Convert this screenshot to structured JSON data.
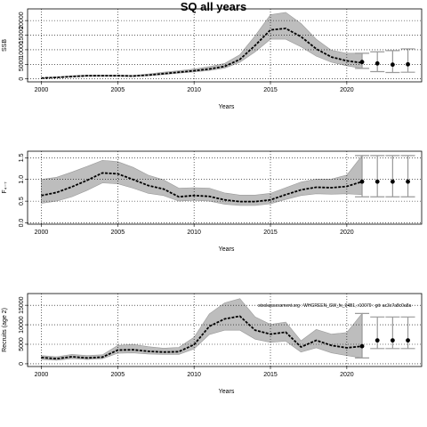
{
  "figure": {
    "title": "SQ all years"
  },
  "chart_data": [
    {
      "type": "line",
      "ylabel": "SSB",
      "xlabel": "Years",
      "xlim": [
        1999.1,
        2024.9
      ],
      "ylim": [
        -1000,
        24000
      ],
      "xticks": [
        2000,
        2005,
        2010,
        2015,
        2020
      ],
      "yticks": [
        0,
        5000,
        10000,
        15000,
        20000
      ],
      "grid": true,
      "estimate": {
        "x": [
          2000,
          2001,
          2002,
          2003,
          2004,
          2005,
          2006,
          2007,
          2008,
          2009,
          2010,
          2011,
          2012,
          2013,
          2014,
          2015,
          2016,
          2017,
          2018,
          2019,
          2020,
          2021
        ],
        "median": [
          300,
          500,
          800,
          1100,
          1100,
          1100,
          1000,
          1300,
          1800,
          2300,
          2800,
          3400,
          4300,
          6700,
          11500,
          16800,
          17300,
          14500,
          10300,
          7500,
          6200,
          5500
        ],
        "lower": [
          200,
          400,
          700,
          900,
          900,
          900,
          800,
          1100,
          1500,
          2000,
          2400,
          2900,
          3700,
          5700,
          9300,
          13600,
          13600,
          11000,
          7800,
          5700,
          4500,
          3600
        ],
        "upper": [
          400,
          700,
          1100,
          1300,
          1300,
          1300,
          1200,
          1700,
          2300,
          2800,
          3400,
          4200,
          5300,
          8300,
          14800,
          22000,
          22800,
          19000,
          13600,
          9800,
          8800,
          8800
        ]
      },
      "projection": {
        "x": [
          2021,
          2022,
          2023,
          2024
        ],
        "median": [
          5800,
          5300,
          4900,
          5000
        ],
        "lower": [
          3600,
          2500,
          2200,
          2300
        ],
        "upper": [
          8800,
          9300,
          9700,
          10300
        ]
      },
      "annotation": ""
    },
    {
      "type": "line",
      "ylabel": "F₄₋₇",
      "xlabel": "Years",
      "xlim": [
        1999.1,
        2024.9
      ],
      "ylim": [
        -0.03,
        1.65
      ],
      "xticks": [
        2000,
        2005,
        2010,
        2015,
        2020
      ],
      "yticks": [
        0.0,
        0.5,
        1.0,
        1.5
      ],
      "grid": true,
      "estimate": {
        "x": [
          2000,
          2001,
          2002,
          2003,
          2004,
          2005,
          2006,
          2007,
          2008,
          2009,
          2010,
          2011,
          2012,
          2013,
          2014,
          2015,
          2016,
          2017,
          2018,
          2019,
          2020,
          2021
        ],
        "median": [
          0.63,
          0.7,
          0.83,
          0.98,
          1.15,
          1.13,
          1.0,
          0.86,
          0.78,
          0.6,
          0.63,
          0.61,
          0.53,
          0.49,
          0.49,
          0.53,
          0.65,
          0.76,
          0.82,
          0.81,
          0.84,
          0.95
        ],
        "lower": [
          0.45,
          0.5,
          0.6,
          0.75,
          0.92,
          0.9,
          0.8,
          0.68,
          0.63,
          0.5,
          0.52,
          0.5,
          0.43,
          0.4,
          0.4,
          0.44,
          0.54,
          0.63,
          0.67,
          0.66,
          0.67,
          0.65
        ],
        "upper": [
          1.0,
          1.05,
          1.17,
          1.3,
          1.44,
          1.41,
          1.28,
          1.1,
          0.99,
          0.8,
          0.81,
          0.8,
          0.69,
          0.64,
          0.64,
          0.68,
          0.81,
          0.94,
          1.01,
          1.01,
          1.1,
          1.55
        ]
      },
      "projection": {
        "x": [
          2021,
          2022,
          2023,
          2024
        ],
        "median": [
          0.95,
          0.95,
          0.95,
          0.95
        ],
        "lower": [
          0.6,
          0.6,
          0.6,
          0.6
        ],
        "upper": [
          1.55,
          1.55,
          1.55,
          1.55
        ]
      },
      "annotation": ""
    },
    {
      "type": "line",
      "ylabel": "Recruits (age 2)",
      "xlabel": "Years",
      "xlim": [
        1999.1,
        2024.9
      ],
      "ylim": [
        -700,
        18000
      ],
      "xticks": [
        2000,
        2005,
        2010,
        2015,
        2020
      ],
      "yticks": [
        0,
        5000,
        10000,
        15000
      ],
      "grid": true,
      "estimate": {
        "x": [
          2000,
          2001,
          2002,
          2003,
          2004,
          2005,
          2006,
          2007,
          2008,
          2009,
          2010,
          2011,
          2012,
          2013,
          2014,
          2015,
          2016,
          2017,
          2018,
          2019,
          2020,
          2021
        ],
        "median": [
          1600,
          1300,
          1800,
          1500,
          1700,
          3500,
          3600,
          3200,
          3000,
          3100,
          4900,
          9600,
          11500,
          12200,
          8600,
          7600,
          8100,
          4300,
          6000,
          4700,
          4100,
          4500
        ],
        "lower": [
          1100,
          900,
          1300,
          1100,
          1300,
          2700,
          2800,
          2500,
          2400,
          2400,
          3800,
          7500,
          8600,
          8600,
          6300,
          5500,
          5800,
          3000,
          4100,
          2800,
          2100,
          1500
        ],
        "upper": [
          2100,
          1800,
          2400,
          2100,
          2300,
          4700,
          5000,
          4400,
          4000,
          4200,
          6800,
          12800,
          15600,
          16700,
          12000,
          10100,
          10700,
          5900,
          8800,
          7600,
          8000,
          12900
        ]
      },
      "projection": {
        "x": [
          2021,
          2022,
          2023,
          2024
        ],
        "median": [
          4500,
          6000,
          6000,
          6000
        ],
        "lower": [
          1500,
          3900,
          3900,
          3900
        ],
        "upper": [
          12900,
          12000,
          12000,
          12000
        ]
      },
      "annotation": "stockassessment.org : WHGREEN_SW_fx_04B1, r10079 : git: ac3c7a8c0a8a"
    }
  ]
}
